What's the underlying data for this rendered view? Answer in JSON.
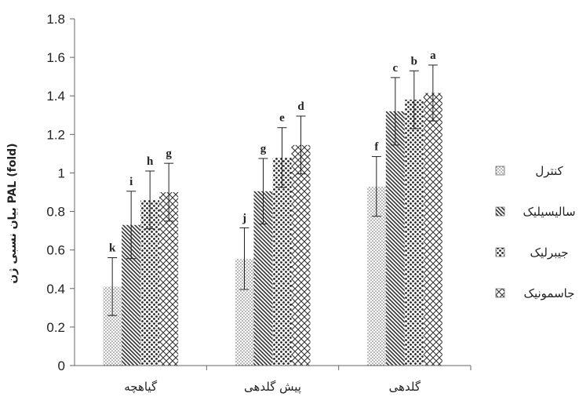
{
  "chart_data": {
    "type": "bar",
    "ylabel": "بیان نسبی ژن PAL (fold)",
    "ylim": [
      0,
      1.8
    ],
    "yticks": [
      "0",
      "0.2",
      "0.4",
      "0.6",
      "0.8",
      "1",
      "1.2",
      "1.4",
      "1.6",
      "1.8"
    ],
    "categories": [
      "گیاهچه",
      "پیش گلدهی",
      "گلدهی"
    ],
    "legend_position": "right",
    "series": [
      {
        "name": "کنترل",
        "pattern": "dots",
        "values": [
          0.41,
          0.555,
          0.93
        ],
        "errors": [
          0.15,
          0.16,
          0.155
        ],
        "letters": [
          "k",
          "j",
          "f"
        ]
      },
      {
        "name": "سالیسیلیک",
        "pattern": "diagonal",
        "values": [
          0.73,
          0.905,
          1.32
        ],
        "errors": [
          0.175,
          0.17,
          0.175
        ],
        "letters": [
          "i",
          "g",
          "c"
        ]
      },
      {
        "name": "جیبرلیک",
        "pattern": "heavy-dots",
        "values": [
          0.86,
          1.08,
          1.38
        ],
        "errors": [
          0.15,
          0.155,
          0.15
        ],
        "letters": [
          "h",
          "e",
          "b"
        ]
      },
      {
        "name": "جاسمونیک",
        "pattern": "crosshatch",
        "values": [
          0.9,
          1.145,
          1.415
        ],
        "errors": [
          0.15,
          0.15,
          0.145
        ],
        "letters": [
          "g",
          "d",
          "a"
        ]
      }
    ]
  }
}
